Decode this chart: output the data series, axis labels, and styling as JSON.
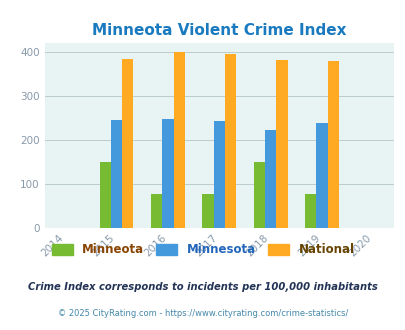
{
  "title": "Minneota Violent Crime Index",
  "title_color": "#1a7abf",
  "years": [
    2014,
    2015,
    2016,
    2017,
    2018,
    2019,
    2020
  ],
  "data_years": [
    2015,
    2016,
    2017,
    2018,
    2019
  ],
  "minneota": [
    150,
    76,
    76,
    150,
    76
  ],
  "minnesota": [
    245,
    246,
    243,
    222,
    239
  ],
  "national": [
    384,
    399,
    394,
    381,
    379
  ],
  "color_minneota": "#77bb33",
  "color_minnesota": "#4499dd",
  "color_national": "#ffaa22",
  "bar_width": 0.22,
  "ylim": [
    0,
    420
  ],
  "yticks": [
    0,
    100,
    200,
    300,
    400
  ],
  "xlim": [
    2013.6,
    2020.4
  ],
  "background_color": "#e8f4f4",
  "grid_color": "#bbcccc",
  "legend_labels": [
    "Minneota",
    "Minnesota",
    "National"
  ],
  "legend_colors": [
    "#884400",
    "#2266bb",
    "#664400"
  ],
  "footnote1": "Crime Index corresponds to incidents per 100,000 inhabitants",
  "footnote2": "© 2025 CityRating.com - https://www.cityrating.com/crime-statistics/",
  "footnote1_color": "#223355",
  "footnote2_color": "#4488aa",
  "tick_color": "#8899aa"
}
